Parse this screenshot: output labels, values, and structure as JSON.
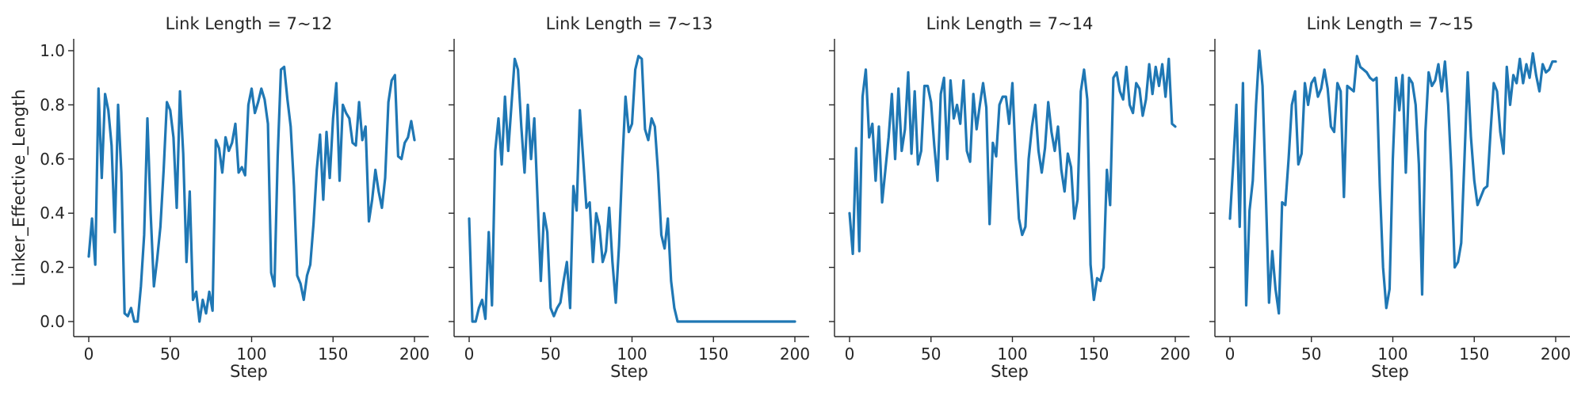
{
  "colors": {
    "series": "#1f77b4",
    "axes": "#262626"
  },
  "chart_data": {
    "type": "line",
    "grid": false,
    "sharey": true,
    "ylabel": "Linker_Effective_Length",
    "xlabel": "Step",
    "xlim": [
      0,
      200
    ],
    "ylim": [
      0,
      1.0
    ],
    "xticks": [
      "0",
      "50",
      "100",
      "150",
      "200"
    ],
    "yticks": [
      "0.0",
      "0.2",
      "0.4",
      "0.6",
      "0.8",
      "1.0"
    ],
    "panels": [
      {
        "title": "Link Length = 7~12",
        "x": [
          0,
          2,
          4,
          6,
          8,
          10,
          12,
          14,
          16,
          18,
          20,
          22,
          24,
          26,
          28,
          30,
          32,
          34,
          36,
          38,
          40,
          42,
          44,
          46,
          48,
          50,
          52,
          54,
          56,
          58,
          60,
          62,
          64,
          66,
          68,
          70,
          72,
          74,
          76,
          78,
          80,
          82,
          84,
          86,
          88,
          90,
          92,
          94,
          96,
          98,
          100,
          102,
          104,
          106,
          108,
          110,
          112,
          114,
          116,
          118,
          120,
          122,
          124,
          126,
          128,
          130,
          132,
          134,
          136,
          138,
          140,
          142,
          144,
          146,
          148,
          150,
          152,
          154,
          156,
          158,
          160,
          162,
          164,
          166,
          168,
          170,
          172,
          174,
          176,
          178,
          180,
          182,
          184,
          186,
          188,
          190,
          192,
          194,
          196,
          198,
          200
        ],
        "y": [
          0.24,
          0.38,
          0.21,
          0.86,
          0.53,
          0.84,
          0.78,
          0.65,
          0.33,
          0.8,
          0.55,
          0.03,
          0.02,
          0.05,
          0.0,
          0.0,
          0.13,
          0.32,
          0.75,
          0.4,
          0.13,
          0.23,
          0.35,
          0.56,
          0.81,
          0.78,
          0.68,
          0.42,
          0.85,
          0.62,
          0.22,
          0.48,
          0.08,
          0.11,
          0.0,
          0.08,
          0.03,
          0.11,
          0.04,
          0.67,
          0.64,
          0.55,
          0.68,
          0.63,
          0.66,
          0.73,
          0.55,
          0.57,
          0.54,
          0.8,
          0.86,
          0.77,
          0.81,
          0.86,
          0.82,
          0.73,
          0.18,
          0.13,
          0.61,
          0.93,
          0.94,
          0.82,
          0.72,
          0.5,
          0.17,
          0.14,
          0.08,
          0.17,
          0.21,
          0.36,
          0.56,
          0.69,
          0.45,
          0.7,
          0.53,
          0.75,
          0.88,
          0.52,
          0.8,
          0.77,
          0.75,
          0.66,
          0.65,
          0.81,
          0.67,
          0.72,
          0.37,
          0.45,
          0.56,
          0.48,
          0.42,
          0.53,
          0.81,
          0.89,
          0.91,
          0.61,
          0.6,
          0.66,
          0.68,
          0.74,
          0.67
        ]
      },
      {
        "title": "Link Length = 7~13",
        "x": [
          0,
          2,
          4,
          6,
          8,
          10,
          12,
          14,
          16,
          18,
          20,
          22,
          24,
          26,
          28,
          30,
          32,
          34,
          36,
          38,
          40,
          42,
          44,
          46,
          48,
          50,
          52,
          54,
          56,
          58,
          60,
          62,
          64,
          66,
          68,
          70,
          72,
          74,
          76,
          78,
          80,
          82,
          84,
          86,
          88,
          90,
          92,
          94,
          96,
          98,
          100,
          102,
          104,
          106,
          108,
          110,
          112,
          114,
          116,
          118,
          120,
          122,
          124,
          126,
          128,
          200
        ],
        "y": [
          0.38,
          0.0,
          0.0,
          0.05,
          0.08,
          0.01,
          0.33,
          0.06,
          0.63,
          0.75,
          0.58,
          0.83,
          0.63,
          0.8,
          0.97,
          0.93,
          0.72,
          0.55,
          0.8,
          0.6,
          0.75,
          0.45,
          0.15,
          0.4,
          0.33,
          0.05,
          0.02,
          0.05,
          0.07,
          0.15,
          0.22,
          0.05,
          0.5,
          0.41,
          0.78,
          0.6,
          0.42,
          0.44,
          0.22,
          0.4,
          0.35,
          0.22,
          0.26,
          0.42,
          0.22,
          0.07,
          0.28,
          0.58,
          0.83,
          0.7,
          0.73,
          0.93,
          0.98,
          0.97,
          0.71,
          0.67,
          0.75,
          0.72,
          0.55,
          0.32,
          0.27,
          0.38,
          0.15,
          0.05,
          0.0,
          0.0
        ]
      },
      {
        "title": "Link Length = 7~14",
        "x": [
          0,
          2,
          4,
          6,
          8,
          10,
          12,
          14,
          16,
          18,
          20,
          22,
          24,
          26,
          28,
          30,
          32,
          34,
          36,
          38,
          40,
          42,
          44,
          46,
          48,
          50,
          52,
          54,
          56,
          58,
          60,
          62,
          64,
          66,
          68,
          70,
          72,
          74,
          76,
          78,
          80,
          82,
          84,
          86,
          88,
          90,
          92,
          94,
          96,
          98,
          100,
          102,
          104,
          106,
          108,
          110,
          112,
          114,
          116,
          118,
          120,
          122,
          124,
          126,
          128,
          130,
          132,
          134,
          136,
          138,
          140,
          142,
          144,
          146,
          148,
          150,
          152,
          154,
          156,
          158,
          160,
          162,
          164,
          166,
          168,
          170,
          172,
          174,
          176,
          178,
          180,
          182,
          184,
          186,
          188,
          190,
          192,
          194,
          196,
          198,
          200
        ],
        "y": [
          0.4,
          0.25,
          0.64,
          0.26,
          0.83,
          0.93,
          0.68,
          0.73,
          0.52,
          0.72,
          0.44,
          0.56,
          0.68,
          0.84,
          0.6,
          0.86,
          0.63,
          0.71,
          0.92,
          0.62,
          0.85,
          0.58,
          0.63,
          0.87,
          0.87,
          0.81,
          0.65,
          0.52,
          0.84,
          0.9,
          0.6,
          0.89,
          0.75,
          0.8,
          0.73,
          0.89,
          0.63,
          0.59,
          0.84,
          0.71,
          0.8,
          0.88,
          0.79,
          0.36,
          0.66,
          0.61,
          0.8,
          0.83,
          0.83,
          0.73,
          0.88,
          0.6,
          0.38,
          0.32,
          0.35,
          0.6,
          0.72,
          0.8,
          0.63,
          0.55,
          0.64,
          0.81,
          0.7,
          0.63,
          0.72,
          0.56,
          0.48,
          0.62,
          0.57,
          0.38,
          0.45,
          0.85,
          0.93,
          0.82,
          0.21,
          0.08,
          0.16,
          0.15,
          0.2,
          0.56,
          0.43,
          0.9,
          0.92,
          0.85,
          0.82,
          0.94,
          0.8,
          0.77,
          0.88,
          0.86,
          0.76,
          0.82,
          0.95,
          0.84,
          0.94,
          0.87,
          0.95,
          0.83,
          0.97,
          0.73,
          0.72
        ]
      },
      {
        "title": "Link Length = 7~15",
        "x": [
          0,
          2,
          4,
          6,
          8,
          10,
          12,
          14,
          16,
          18,
          20,
          22,
          24,
          26,
          28,
          30,
          32,
          34,
          36,
          38,
          40,
          42,
          44,
          46,
          48,
          50,
          52,
          54,
          56,
          58,
          60,
          62,
          64,
          66,
          68,
          70,
          72,
          74,
          76,
          78,
          80,
          82,
          84,
          86,
          88,
          90,
          92,
          94,
          96,
          98,
          100,
          102,
          104,
          106,
          108,
          110,
          112,
          114,
          116,
          118,
          120,
          122,
          124,
          126,
          128,
          130,
          132,
          134,
          136,
          138,
          140,
          142,
          144,
          146,
          148,
          150,
          152,
          154,
          156,
          158,
          160,
          162,
          164,
          166,
          168,
          170,
          172,
          174,
          176,
          178,
          180,
          182,
          184,
          186,
          188,
          190,
          192,
          194,
          196,
          198,
          200
        ],
        "y": [
          0.38,
          0.58,
          0.8,
          0.35,
          0.88,
          0.06,
          0.41,
          0.52,
          0.8,
          1.0,
          0.87,
          0.48,
          0.07,
          0.26,
          0.12,
          0.03,
          0.44,
          0.43,
          0.6,
          0.8,
          0.85,
          0.58,
          0.62,
          0.88,
          0.8,
          0.88,
          0.9,
          0.83,
          0.86,
          0.93,
          0.86,
          0.72,
          0.7,
          0.88,
          0.85,
          0.46,
          0.87,
          0.86,
          0.85,
          0.98,
          0.94,
          0.93,
          0.92,
          0.9,
          0.89,
          0.9,
          0.5,
          0.2,
          0.05,
          0.12,
          0.6,
          0.9,
          0.78,
          0.91,
          0.55,
          0.9,
          0.88,
          0.8,
          0.58,
          0.1,
          0.7,
          0.92,
          0.87,
          0.89,
          0.95,
          0.85,
          0.96,
          0.8,
          0.55,
          0.2,
          0.22,
          0.29,
          0.6,
          0.92,
          0.68,
          0.52,
          0.43,
          0.46,
          0.49,
          0.5,
          0.7,
          0.88,
          0.85,
          0.7,
          0.62,
          0.94,
          0.8,
          0.91,
          0.88,
          0.97,
          0.88,
          0.95,
          0.9,
          0.99,
          0.91,
          0.85,
          0.95,
          0.92,
          0.93,
          0.96,
          0.96
        ]
      }
    ]
  }
}
